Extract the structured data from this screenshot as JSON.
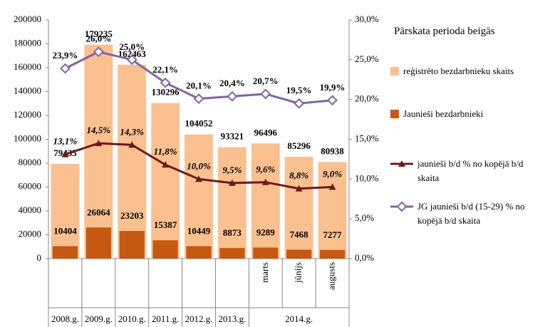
{
  "chart_data": {
    "type": "bar_line_combo",
    "legend_title": "Pārskata perioda beigās",
    "categories": [
      "2008.g.",
      "2009.g.",
      "2010.g.",
      "2011.g.",
      "2012.g.",
      "2013.g.",
      "marts",
      "jūnijs",
      "augusts"
    ],
    "category_group_label": "2014.g.",
    "ylim": [
      0,
      200000
    ],
    "yticks": [
      0,
      20000,
      40000,
      60000,
      80000,
      100000,
      120000,
      140000,
      160000,
      180000,
      200000
    ],
    "y2lim": [
      0,
      30
    ],
    "y2ticks": [
      {
        "value": 0,
        "label": "0,0%"
      },
      {
        "value": 5,
        "label": "5,0%"
      },
      {
        "value": 10,
        "label": "10,0%"
      },
      {
        "value": 15,
        "label": "15,0%"
      },
      {
        "value": 20,
        "label": "20,0%"
      },
      {
        "value": 25,
        "label": "25,0%"
      },
      {
        "value": 30,
        "label": "30,0%"
      }
    ],
    "legend": "right",
    "series": [
      {
        "name": "reģistrēto bezdarbnieku skaits",
        "type": "bar",
        "color": "#fac090",
        "values": [
          79435,
          179235,
          162463,
          130296,
          104052,
          93321,
          96496,
          85296,
          80938
        ]
      },
      {
        "name": "Jaunieši bezdarbnieki",
        "type": "bar",
        "color": "#c65911",
        "values": [
          10404,
          26064,
          23203,
          15387,
          10449,
          8873,
          9289,
          7468,
          7277
        ]
      },
      {
        "name": "jaunieši b/d % no kopējā b/d skaita",
        "type": "line",
        "axis": "y2",
        "color": "#6b1a1a",
        "marker": "triangle",
        "values": [
          13.1,
          14.5,
          14.3,
          11.8,
          10.0,
          9.5,
          9.6,
          8.8,
          9.0
        ],
        "value_labels": [
          "13,1%",
          "14,5%",
          "14,3%",
          "11,8%",
          "10,0%",
          "9,5%",
          "9,6%",
          "8,8%",
          "9,0%"
        ]
      },
      {
        "name": "JG jaunieši b/d (15-29) % no kopējā b/d skaita",
        "type": "line",
        "axis": "y2",
        "color": "#8064a2",
        "marker": "diamond",
        "values": [
          23.9,
          26.0,
          25.0,
          22.1,
          20.1,
          20.4,
          20.7,
          19.5,
          19.9
        ],
        "value_labels": [
          "23,9%",
          "26,0%",
          "25,0%",
          "22,1%",
          "20,1%",
          "20,4%",
          "20,7%",
          "19,5%",
          "19,9%"
        ]
      }
    ]
  }
}
